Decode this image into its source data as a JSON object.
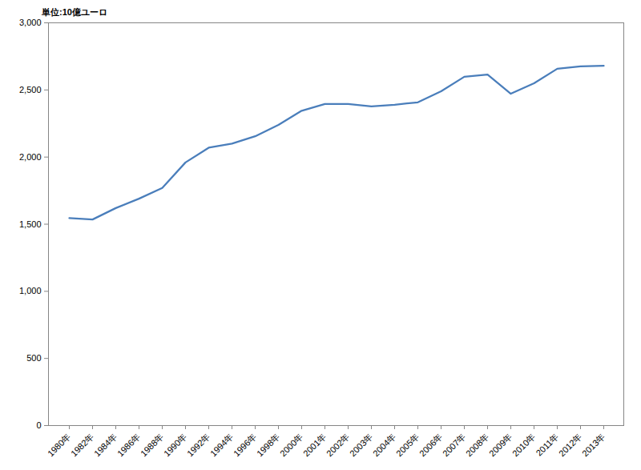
{
  "chart_data": {
    "type": "line",
    "y_label": "単位:10億ユーロ",
    "categories": [
      "1980年",
      "1982年",
      "1984年",
      "1986年",
      "1988年",
      "1990年",
      "1992年",
      "1994年",
      "1996年",
      "1998年",
      "2000年",
      "2001年",
      "2002年",
      "2003年",
      "2004年",
      "2005年",
      "2006年",
      "2007年",
      "2008年",
      "2009年",
      "2010年",
      "2011年",
      "2012年",
      "2013年"
    ],
    "values": [
      1545,
      1535,
      1620,
      1690,
      1770,
      1960,
      2070,
      2100,
      2155,
      2240,
      2345,
      2395,
      2395,
      2378,
      2390,
      2408,
      2490,
      2598,
      2615,
      2472,
      2550,
      2658,
      2676,
      2680
    ],
    "color": "#4a7ebb",
    "ylim": [
      0,
      3000
    ],
    "yticks": [
      0,
      500,
      {
        "value": 1000,
        "label": "1,000"
      },
      {
        "value": 1500,
        "label": "1,500"
      },
      {
        "value": 2000,
        "label": "2,000"
      },
      {
        "value": 2500,
        "label": "2,500"
      },
      {
        "value": 3000,
        "label": "3,000"
      }
    ],
    "grid": false
  }
}
